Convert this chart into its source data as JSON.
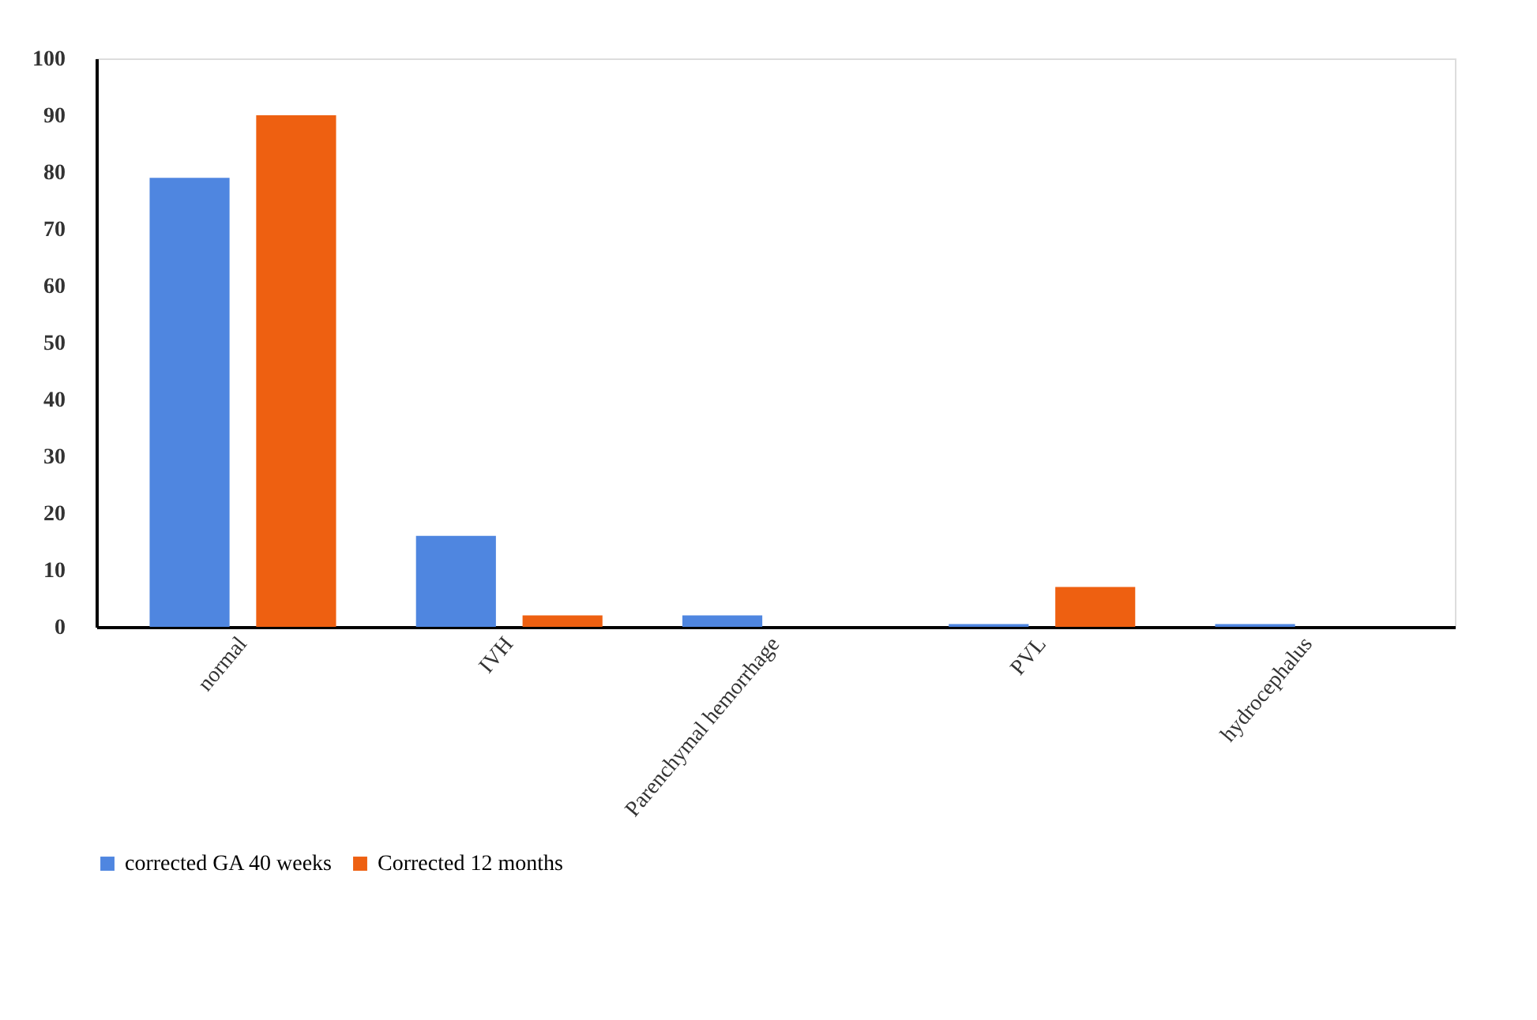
{
  "chart_data": {
    "type": "bar",
    "categories": [
      "normal",
      "IVH",
      "Parenchymal hemorrhage",
      "PVL",
      "hydrocephalus"
    ],
    "series": [
      {
        "name": "corrected GA 40 weeks",
        "color": "#4f86e0",
        "values": [
          79,
          16,
          2,
          0.5,
          0.5
        ]
      },
      {
        "name": "Corrected 12 months",
        "color": "#ee6011",
        "values": [
          90,
          2,
          0,
          7,
          0
        ]
      }
    ],
    "ylim": [
      0,
      100
    ],
    "yticks": [
      0,
      10,
      20,
      30,
      40,
      50,
      60,
      70,
      80,
      90,
      100
    ],
    "grid": false,
    "legend": "bottom"
  }
}
